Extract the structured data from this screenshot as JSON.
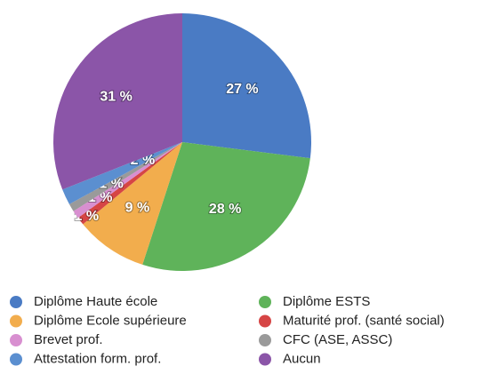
{
  "chart_data": {
    "type": "pie",
    "series": [
      {
        "name": "Diplôme Haute école",
        "color": "#4a7bc4",
        "values": [
          27
        ],
        "value_labels": [
          "27 %"
        ]
      },
      {
        "name": "Diplôme ESTS",
        "color": "#5fb35a",
        "values": [
          28
        ],
        "value_labels": [
          "28 %"
        ]
      },
      {
        "name": "Diplôme Ecole supérieure",
        "color": "#f2ad4d",
        "values": [
          9
        ],
        "value_labels": [
          "9 %"
        ]
      },
      {
        "name": "Maturité prof. (santé social)",
        "color": "#d64545",
        "values": [
          1
        ],
        "value_labels": [
          "1 %"
        ]
      },
      {
        "name": "Brevet prof.",
        "color": "#d88fd0",
        "values": [
          1
        ],
        "value_labels": [
          "1 %"
        ]
      },
      {
        "name": "CFC (ASE, ASSC)",
        "color": "#9a9a9a",
        "values": [
          1
        ],
        "value_labels": [
          "1 %"
        ]
      },
      {
        "name": "Attestation form. prof.",
        "color": "#5b8fd0",
        "values": [
          2
        ],
        "value_labels": [
          "2 %"
        ]
      },
      {
        "name": "Aucun",
        "color": "#8b55a8",
        "values": [
          31
        ],
        "value_labels": [
          "31 %"
        ]
      }
    ]
  }
}
